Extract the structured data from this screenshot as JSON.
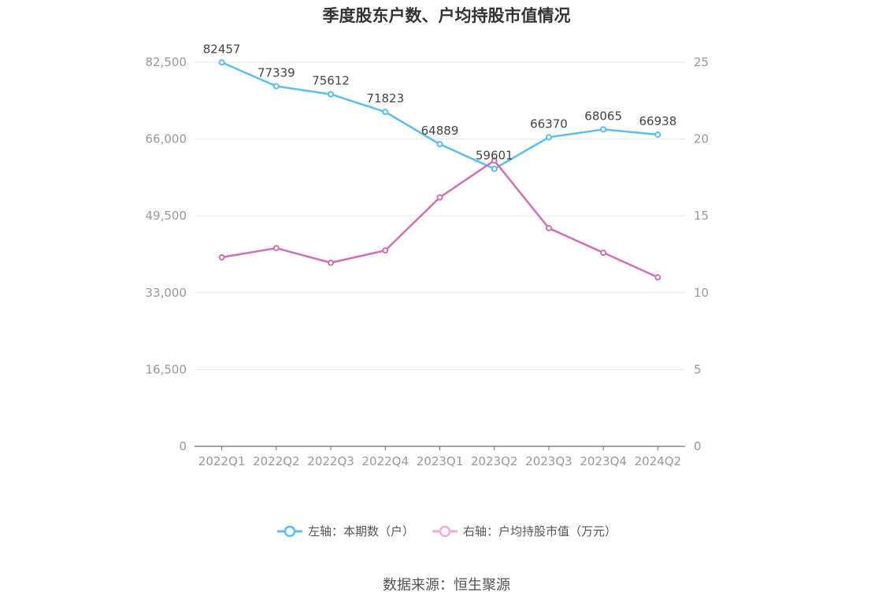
{
  "chart_data": {
    "type": "line",
    "title": "季度股东户数、户均持股市值情况",
    "categories": [
      "2022Q1",
      "2022Q2",
      "2022Q3",
      "2022Q4",
      "2023Q1",
      "2023Q2",
      "2023Q3",
      "2023Q4",
      "2024Q2"
    ],
    "series": [
      {
        "name": "左轴：本期数（户）",
        "axis": "left",
        "color": "#5bbdf0",
        "values": [
          82457,
          77339,
          75612,
          71823,
          64889,
          59601,
          66370,
          68065,
          66938
        ],
        "show_labels": true
      },
      {
        "name": "右轴：户均持股市值（万元）",
        "axis": "right",
        "color": "#d070b4",
        "values": [
          12.3,
          12.9,
          11.95,
          12.75,
          16.2,
          18.6,
          14.2,
          12.6,
          11.0
        ],
        "show_labels": false
      }
    ],
    "left_axis": {
      "min": 0,
      "max": 82500,
      "ticks": [
        "0",
        "16,500",
        "33,000",
        "49,500",
        "66,000",
        "82,500"
      ]
    },
    "right_axis": {
      "min": 0,
      "max": 25,
      "ticks": [
        "0",
        "5",
        "10",
        "15",
        "20",
        "25"
      ]
    },
    "grid": true,
    "legend_position": "bottom"
  },
  "source": "数据来源：恒生聚源"
}
